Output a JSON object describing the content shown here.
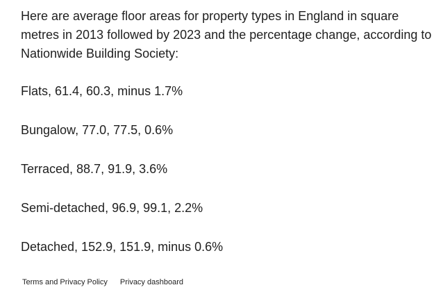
{
  "intro": "Here are average floor areas for property types in England in square metres in 2013 followed by 2023 and the percentage change, according to Nationwide Building Society:",
  "items": [
    "Flats, 61.4, 60.3, minus 1.7%",
    "Bungalow, 77.0, 77.5, 0.6%",
    "Terraced, 88.7, 91.9, 3.6%",
    "Semi-detached, 96.9, 99.1, 2.2%",
    "Detached, 152.9, 151.9, minus 0.6%"
  ],
  "footer": {
    "terms_label": "Terms and Privacy Policy",
    "privacy_dashboard_label": "Privacy dashboard"
  }
}
